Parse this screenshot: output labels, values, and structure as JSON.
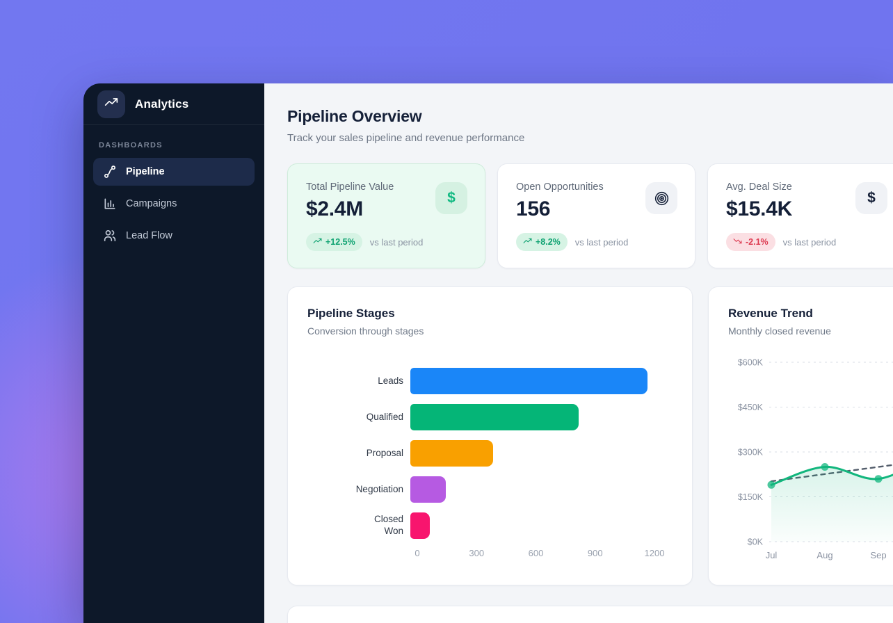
{
  "theme": {
    "background_purple": "#6f72ee",
    "background_blob_pink": "#b97be9",
    "sidebar_bg": "#0d1829",
    "sidebar_active_bg": "#1d2b4a",
    "content_bg": "#f3f5f8",
    "card_border": "#e7eaf0",
    "accent_green": "#12b67d",
    "positive_green": "#0ea271",
    "negative_red": "#dd3b51"
  },
  "sidebar": {
    "app_name": "Analytics",
    "logo_icon": "trending-up-icon",
    "section_label": "DASHBOARDS",
    "items": [
      {
        "label": "Pipeline",
        "icon": "waypoints-icon",
        "active": true
      },
      {
        "label": "Campaigns",
        "icon": "bar-chart-icon",
        "active": false
      },
      {
        "label": "Lead Flow",
        "icon": "users-icon",
        "active": false
      }
    ]
  },
  "header": {
    "title": "Pipeline Overview",
    "subtitle": "Track your sales pipeline and revenue performance"
  },
  "kpis": [
    {
      "label": "Total Pipeline Value",
      "value": "$2.4M",
      "change": "+12.5%",
      "direction": "up",
      "note": "vs last period",
      "icon": "dollar-icon",
      "highlighted": true
    },
    {
      "label": "Open Opportunities",
      "value": "156",
      "change": "+8.2%",
      "direction": "up",
      "note": "vs last period",
      "icon": "target-icon",
      "highlighted": false
    },
    {
      "label": "Avg. Deal Size",
      "value": "$15.4K",
      "change": "-2.1%",
      "direction": "down",
      "note": "vs last period",
      "icon": "dollar-icon",
      "highlighted": false
    }
  ],
  "chart_data": [
    {
      "type": "bar",
      "orientation": "horizontal",
      "title": "Pipeline Stages",
      "subtitle": "Conversion through stages",
      "categories": [
        "Leads",
        "Qualified",
        "Proposal",
        "Negotiation",
        "Closed Won"
      ],
      "values": [
        1200,
        850,
        420,
        180,
        100
      ],
      "colors": [
        "#1a86f8",
        "#05b577",
        "#f9a000",
        "#b65ae2",
        "#f8156e"
      ],
      "xlim": [
        0,
        1200
      ],
      "xticks": [
        0,
        300,
        600,
        900,
        1200
      ],
      "grid": false
    },
    {
      "type": "line",
      "title": "Revenue Trend",
      "subtitle": "Monthly closed revenue",
      "x": [
        "Jul",
        "Aug",
        "Sep"
      ],
      "series": [
        {
          "name": "revenue",
          "values": [
            190,
            250,
            210
          ],
          "offscreen_next": 290,
          "color": "#12b67d",
          "style": "solid",
          "markers": true,
          "area_fill": true
        },
        {
          "name": "trend",
          "values": [
            202,
            226,
            250
          ],
          "offscreen_next": 274,
          "color": "#535d6b",
          "style": "dashed",
          "markers": false,
          "area_fill": false
        }
      ],
      "ylim": [
        0,
        600
      ],
      "yticks": [
        "$0K",
        "$150K",
        "$300K",
        "$450K",
        "$600K"
      ],
      "unit": "$K",
      "grid": "dashed-horizontal",
      "legend": "none",
      "clipped_right": true
    }
  ]
}
